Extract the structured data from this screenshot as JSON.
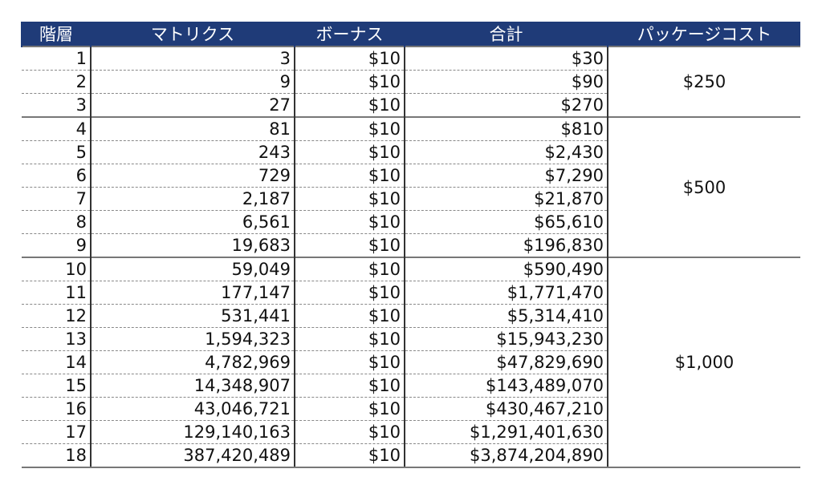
{
  "table": {
    "headers": [
      "階層",
      "マトリクス",
      "ボーナス",
      "合計",
      "パッケージコスト"
    ],
    "groups": [
      {
        "cost": "$250",
        "rows": [
          [
            "1",
            "3",
            "$10",
            "$30"
          ],
          [
            "2",
            "9",
            "$10",
            "$90"
          ],
          [
            "3",
            "27",
            "$10",
            "$270"
          ]
        ]
      },
      {
        "cost": "$500",
        "rows": [
          [
            "4",
            "81",
            "$10",
            "$810"
          ],
          [
            "5",
            "243",
            "$10",
            "$2,430"
          ],
          [
            "6",
            "729",
            "$10",
            "$7,290"
          ],
          [
            "7",
            "2,187",
            "$10",
            "$21,870"
          ],
          [
            "8",
            "6,561",
            "$10",
            "$65,610"
          ],
          [
            "9",
            "19,683",
            "$10",
            "$196,830"
          ]
        ]
      },
      {
        "cost": "$1,000",
        "rows": [
          [
            "10",
            "59,049",
            "$10",
            "$590,490"
          ],
          [
            "11",
            "177,147",
            "$10",
            "$1,771,470"
          ],
          [
            "12",
            "531,441",
            "$10",
            "$5,314,410"
          ],
          [
            "13",
            "1,594,323",
            "$10",
            "$15,943,230"
          ],
          [
            "14",
            "4,782,969",
            "$10",
            "$47,829,690"
          ],
          [
            "15",
            "14,348,907",
            "$10",
            "$143,489,070"
          ],
          [
            "16",
            "43,046,721",
            "$10",
            "$430,467,210"
          ],
          [
            "17",
            "129,140,163",
            "$10",
            "$1,291,401,630"
          ],
          [
            "18",
            "387,420,489",
            "$10",
            "$3,874,204,890"
          ]
        ]
      }
    ]
  }
}
